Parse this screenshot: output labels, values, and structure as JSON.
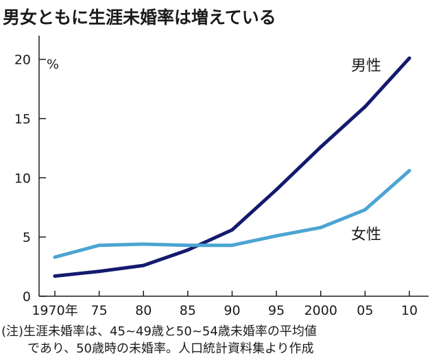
{
  "chart_data": {
    "type": "line",
    "title": "男女ともに生涯未婚率は増えている",
    "unit_label": "%",
    "categories": [
      "1970年",
      "75",
      "80",
      "85",
      "90",
      "95",
      "2000",
      "05",
      "10"
    ],
    "x": [
      1970,
      1975,
      1980,
      1985,
      1990,
      1995,
      2000,
      2005,
      2010
    ],
    "series": [
      {
        "name": "男性",
        "color": "#141a6e",
        "values": [
          1.7,
          2.1,
          2.6,
          3.9,
          5.6,
          9.0,
          12.6,
          16.0,
          20.1
        ]
      },
      {
        "name": "女性",
        "color": "#4aa5d2",
        "values": [
          3.3,
          4.3,
          4.4,
          4.3,
          4.3,
          5.1,
          5.8,
          7.3,
          10.6
        ]
      }
    ],
    "yticks": [
      0,
      5,
      10,
      15,
      20
    ],
    "ylim": [
      0,
      22
    ],
    "grid": false
  },
  "note": {
    "line1": "(注)生涯未婚率は、45~49歳と50~54歳未婚率の平均値",
    "line2": "であり、50歳時の未婚率。人口統計資料集より作成"
  }
}
